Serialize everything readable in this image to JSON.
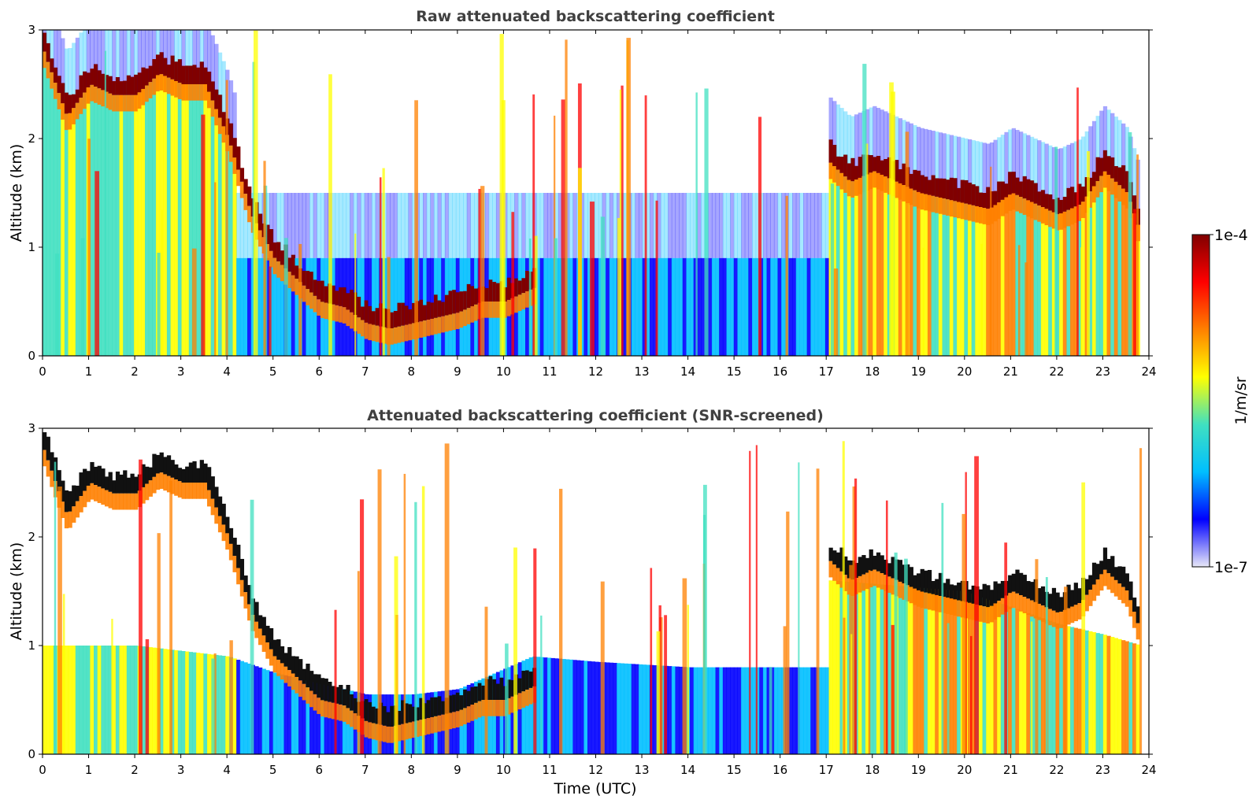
{
  "chart_data": [
    {
      "type": "heatmap",
      "title": "Raw attenuated backscattering coefficient",
      "xlabel": "",
      "ylabel": "Altitude (km)",
      "xlim": [
        0,
        24
      ],
      "ylim": [
        0,
        3
      ],
      "xticks": [
        "0",
        "1",
        "2",
        "3",
        "4",
        "5",
        "6",
        "7",
        "8",
        "9",
        "10",
        "11",
        "12",
        "13",
        "14",
        "15",
        "16",
        "17",
        "18",
        "19",
        "20",
        "21",
        "22",
        "23",
        "24"
      ],
      "yticks": [
        "0",
        "1",
        "2",
        "3"
      ],
      "data_coverage": [
        0,
        23.8
      ],
      "cloud_base_layer": {
        "time_utc": [
          0.0,
          0.5,
          1.0,
          1.5,
          2.0,
          2.5,
          3.0,
          3.5,
          4.0,
          4.5,
          5.0,
          5.5,
          6.0,
          6.5,
          7.0,
          7.5,
          8.0,
          8.5,
          9.0,
          9.5,
          10.0,
          10.5,
          17.0,
          17.5,
          18.0,
          18.5,
          19.0,
          19.5,
          20.0,
          20.5,
          21.0,
          21.5,
          22.0,
          22.5,
          23.0,
          23.5,
          23.8
        ],
        "altitude_km": [
          2.8,
          2.2,
          2.5,
          2.4,
          2.4,
          2.6,
          2.5,
          2.5,
          2.0,
          1.3,
          0.9,
          0.7,
          0.5,
          0.45,
          0.3,
          0.25,
          0.3,
          0.35,
          0.4,
          0.5,
          0.5,
          0.6,
          1.8,
          1.6,
          1.7,
          1.6,
          1.5,
          1.45,
          1.4,
          1.35,
          1.5,
          1.4,
          1.3,
          1.4,
          1.7,
          1.5,
          1.1
        ]
      }
    },
    {
      "type": "heatmap",
      "title": "Attenuated backscattering coefficient (SNR-screened)",
      "xlabel": "Time (UTC)",
      "ylabel": "Altitude (km)",
      "xlim": [
        0,
        24
      ],
      "ylim": [
        0,
        3
      ],
      "xticks": [
        "0",
        "1",
        "2",
        "3",
        "4",
        "5",
        "6",
        "7",
        "8",
        "9",
        "10",
        "11",
        "12",
        "13",
        "14",
        "15",
        "16",
        "17",
        "18",
        "19",
        "20",
        "21",
        "22",
        "23",
        "24"
      ],
      "yticks": [
        "0",
        "1",
        "2",
        "3"
      ],
      "data_coverage": [
        0,
        23.8
      ],
      "screened_boundary": {
        "time_utc": [
          0,
          2,
          4,
          5,
          6,
          7,
          8,
          9,
          10.6,
          12,
          14,
          15,
          16,
          17,
          17.05,
          20,
          22,
          23,
          23.8
        ],
        "altitude_km": [
          1.0,
          1.0,
          0.9,
          0.75,
          0.65,
          0.55,
          0.55,
          0.6,
          0.9,
          0.85,
          0.8,
          0.8,
          0.8,
          0.8,
          1.6,
          1.5,
          1.2,
          1.1,
          1.0
        ]
      }
    }
  ],
  "colorbar": {
    "label": "1/m/sr",
    "max_label": "1e-4",
    "min_label": "1e-7",
    "scale": "log",
    "colormap": "jet",
    "colors": [
      "#e8e8f8",
      "#0000ff",
      "#00bfff",
      "#40e0c0",
      "#ffff00",
      "#ff8000",
      "#ff0000",
      "#800000"
    ]
  }
}
